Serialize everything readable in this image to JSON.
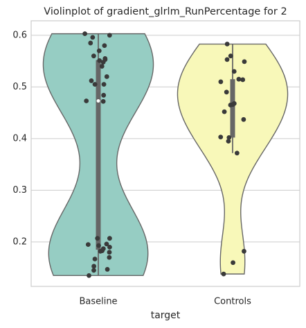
{
  "chart_data": {
    "type": "violin",
    "title": "Violinplot of gradient_glrlm_RunPercentage for 2",
    "x_label": "target",
    "categories": [
      "Baseline",
      "Controls"
    ],
    "series": [
      {
        "name": "Baseline",
        "color": "#96cdc3",
        "values": [
          0.603,
          0.6,
          0.596,
          0.585,
          0.58,
          0.57,
          0.56,
          0.555,
          0.553,
          0.551,
          0.548,
          0.54,
          0.52,
          0.512,
          0.505,
          0.505,
          0.484,
          0.473,
          0.472,
          0.207,
          0.207,
          0.196,
          0.195,
          0.193,
          0.19,
          0.187,
          0.183,
          0.182,
          0.18,
          0.17,
          0.167,
          0.153,
          0.147,
          0.145,
          0.135
        ]
      },
      {
        "name": "Controls",
        "color": "#f8f8b9",
        "values": [
          0.583,
          0.56,
          0.553,
          0.549,
          0.53,
          0.515,
          0.514,
          0.51,
          0.49,
          0.468,
          0.466,
          0.465,
          0.452,
          0.437,
          0.403,
          0.402,
          0.395,
          0.372,
          0.182,
          0.16,
          0.138
        ]
      }
    ],
    "ylim": [
      0.114,
      0.628
    ],
    "yticks": [
      0.2,
      0.3,
      0.4,
      0.5,
      0.6
    ],
    "grid": true
  }
}
